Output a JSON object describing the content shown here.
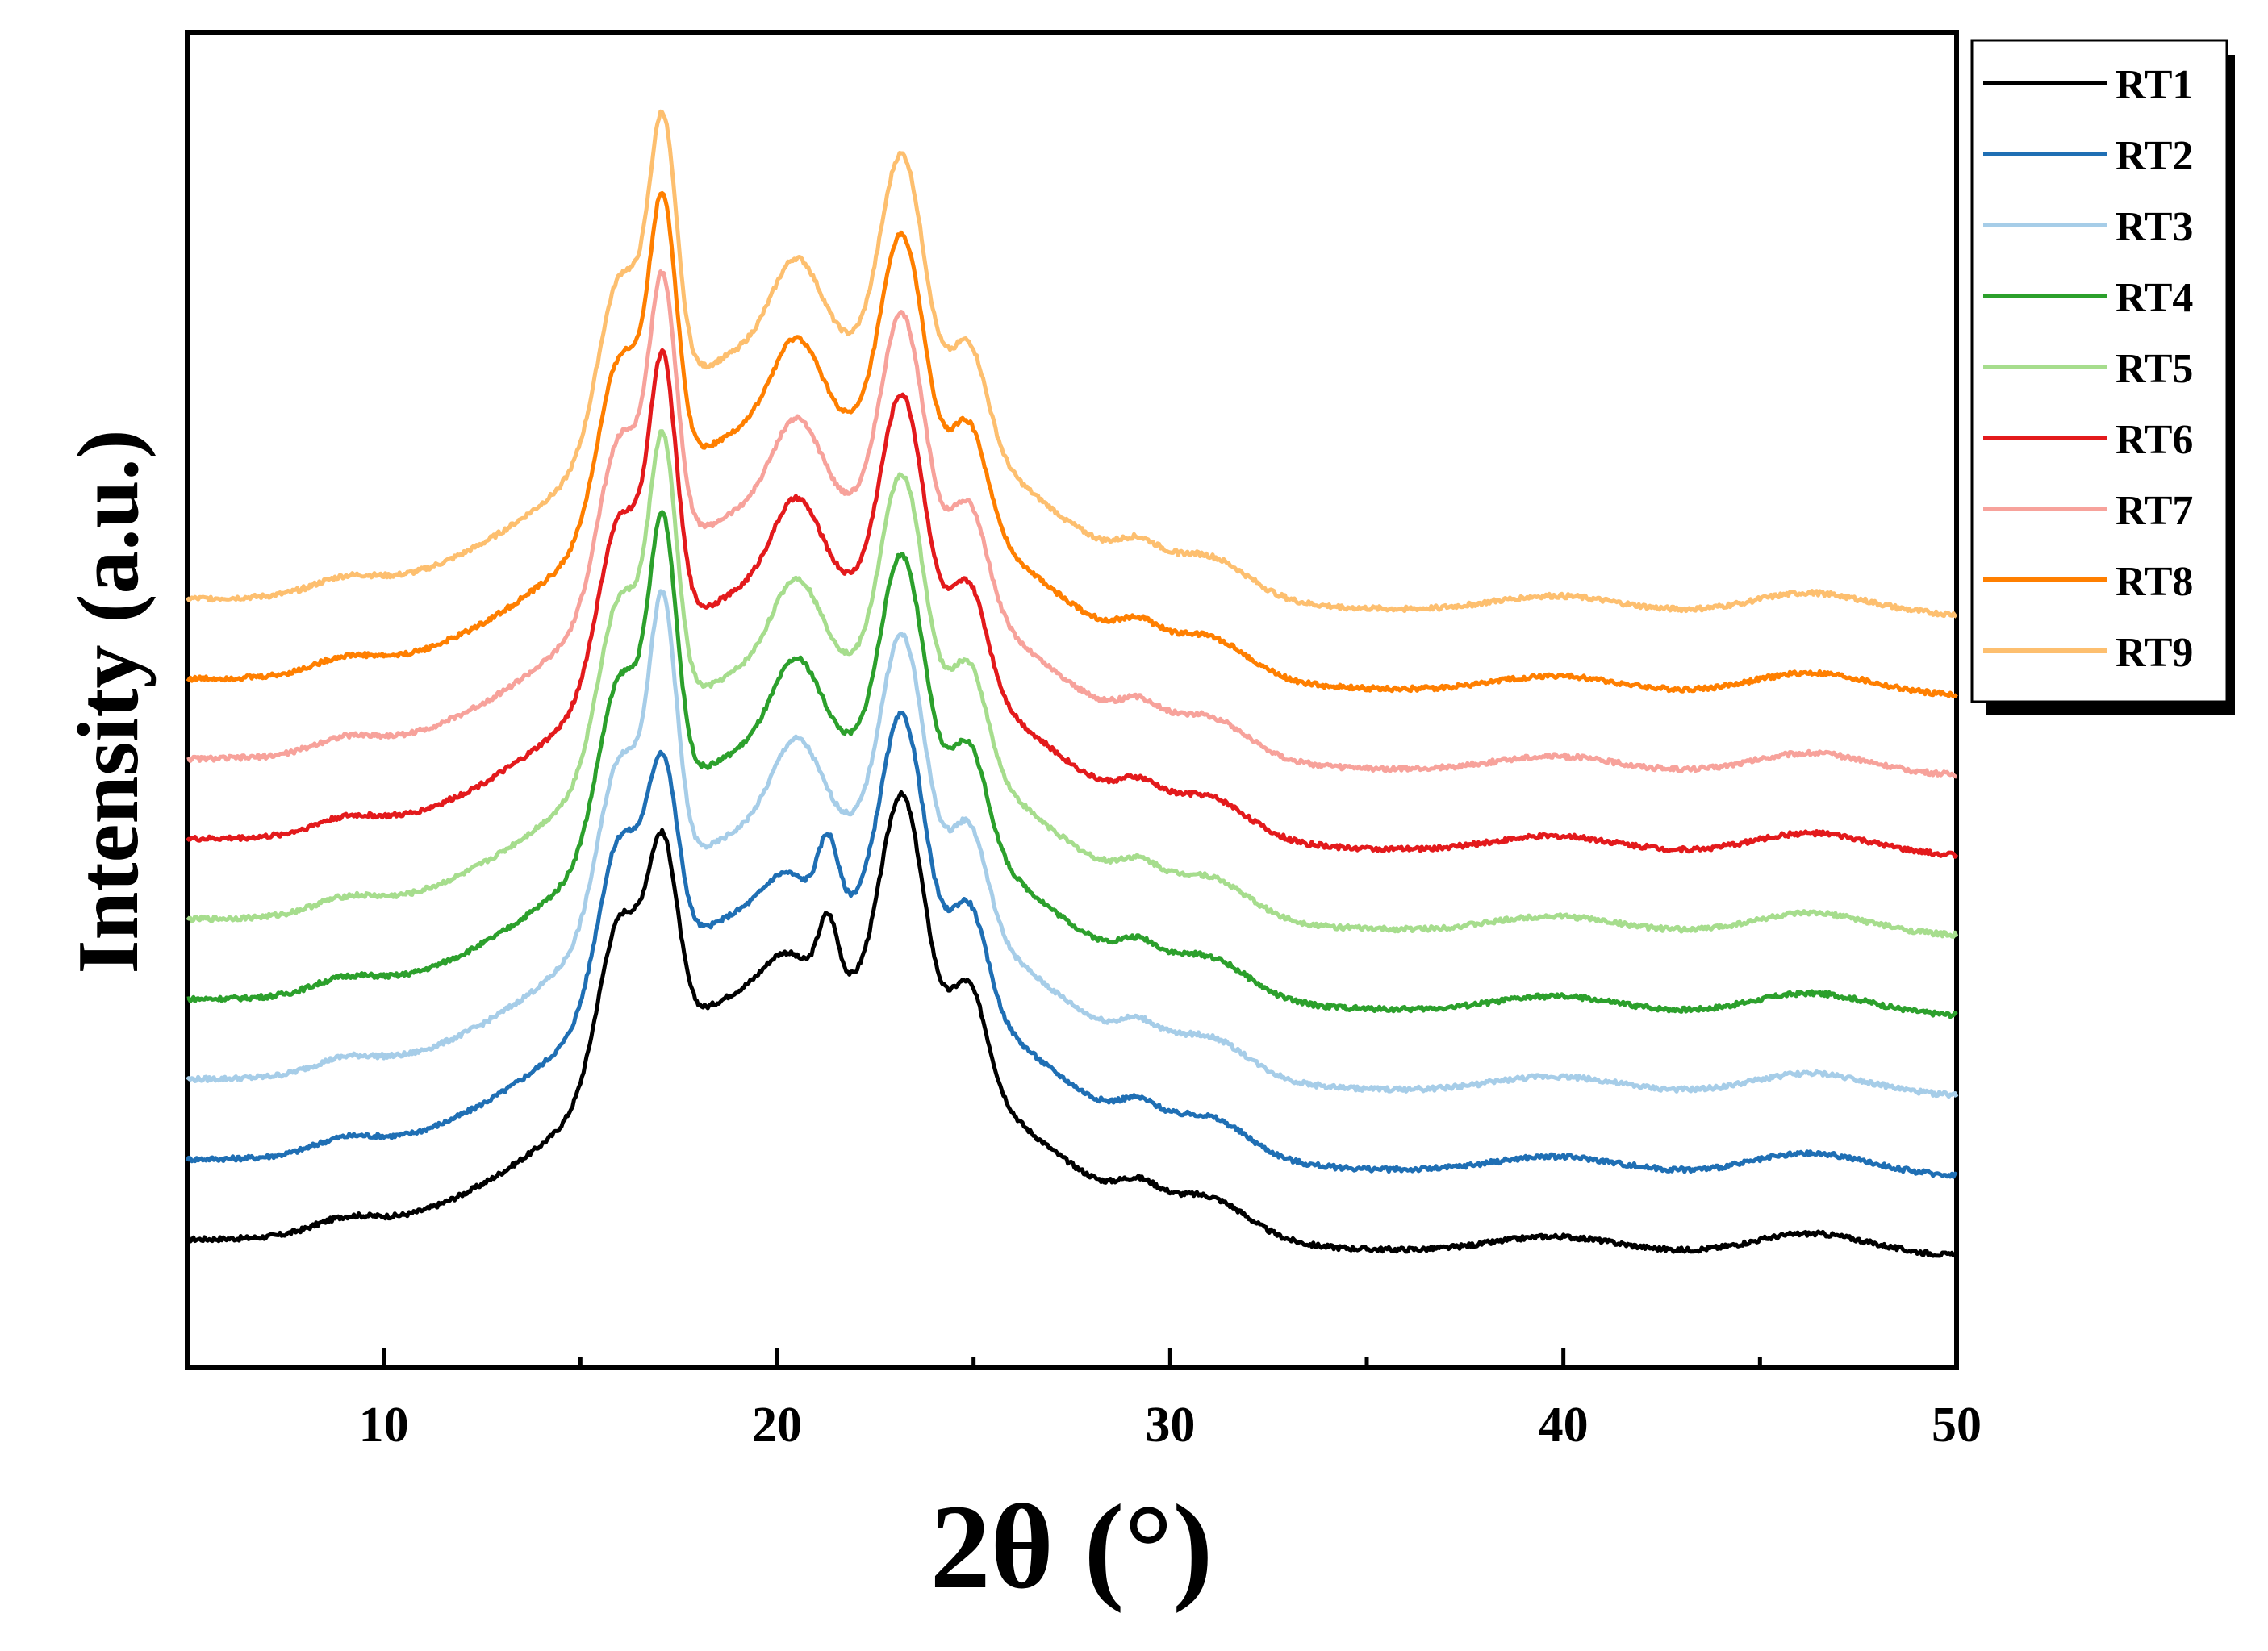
{
  "chart_data": {
    "type": "line",
    "title": "",
    "xlabel": "2θ (°)",
    "ylabel": "Intensity (a.u.)",
    "xlim": [
      5,
      50
    ],
    "ylim": [
      0,
      100
    ],
    "xticks": [
      10,
      20,
      30,
      40,
      50
    ],
    "grid": false,
    "legend_position": "top-right outside",
    "series": [
      {
        "name": "RT1",
        "color": "#000000",
        "offset": 7.5,
        "scale": 1.0,
        "shape": "A"
      },
      {
        "name": "RT2",
        "color": "#1f6fb4",
        "offset": 13.5,
        "scale": 1.0,
        "shape": "A"
      },
      {
        "name": "RT3",
        "color": "#a6cde8",
        "offset": 19.5,
        "scale": 1.0,
        "shape": "B"
      },
      {
        "name": "RT4",
        "color": "#2ca02c",
        "offset": 25.5,
        "scale": 1.0,
        "shape": "B"
      },
      {
        "name": "RT5",
        "color": "#a6dd8d",
        "offset": 31.5,
        "scale": 1.0,
        "shape": "B"
      },
      {
        "name": "RT6",
        "color": "#e31a1c",
        "offset": 37.5,
        "scale": 1.0,
        "shape": "B"
      },
      {
        "name": "RT7",
        "color": "#f7a29b",
        "offset": 43.5,
        "scale": 1.0,
        "shape": "B"
      },
      {
        "name": "RT8",
        "color": "#ff7f00",
        "offset": 49.5,
        "scale": 1.0,
        "shape": "B"
      },
      {
        "name": "RT9",
        "color": "#fdbf6f",
        "offset": 55.5,
        "scale": 1.0,
        "shape": "B"
      }
    ]
  }
}
